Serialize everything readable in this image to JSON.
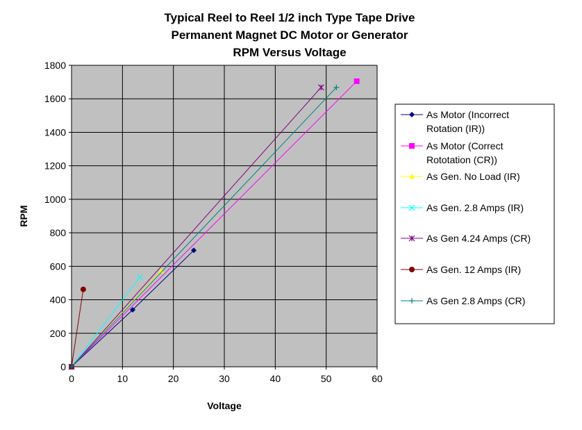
{
  "chart_data": {
    "type": "line",
    "title": [
      "Typical Reel to Reel 1/2 inch Type Tape Drive",
      "Permanent Magnet DC Motor or Generator",
      "RPM Versus Voltage"
    ],
    "xlabel": "Voltage",
    "ylabel": "RPM",
    "xlim": [
      0,
      60
    ],
    "ylim": [
      0,
      1800
    ],
    "xticks": [
      0,
      10,
      20,
      30,
      40,
      50,
      60
    ],
    "yticks": [
      0,
      200,
      400,
      600,
      800,
      1000,
      1200,
      1400,
      1600,
      1800
    ],
    "grid": true,
    "plot_background": "#c0c0c0",
    "legend_position": "right",
    "series": [
      {
        "name": "As Motor (Incorrect Rotation (IR))",
        "label_lines": [
          "As Motor (Incorrect",
          "Rotation (IR))"
        ],
        "color": "#000080",
        "marker": "diamond",
        "points": [
          [
            0,
            0
          ],
          [
            12,
            340
          ],
          [
            24,
            695
          ]
        ]
      },
      {
        "name": "As Motor (Correct Rototation (CR))",
        "label_lines": [
          "As Motor (Correct",
          "Rototation (CR))"
        ],
        "color": "#ff00ff",
        "marker": "square",
        "points": [
          [
            0,
            0
          ],
          [
            56,
            1705
          ]
        ]
      },
      {
        "name": "As Gen. No Load (IR)",
        "label_lines": [
          "As Gen. No Load (IR)"
        ],
        "color": "#ffff00",
        "marker": "triangle",
        "points": [
          [
            0,
            0
          ],
          [
            17.6,
            572
          ]
        ]
      },
      {
        "name": "As Gen. 2.8 Amps (IR)",
        "label_lines": [
          "As Gen. 2.8 Amps (IR)"
        ],
        "color": "#00ffff",
        "marker": "x",
        "points": [
          [
            0,
            0
          ],
          [
            13.4,
            535
          ]
        ]
      },
      {
        "name": "As Gen 4.24 Amps (CR)",
        "label_lines": [
          "As Gen 4.24 Amps (CR)"
        ],
        "color": "#800080",
        "marker": "star",
        "points": [
          [
            0,
            0
          ],
          [
            49,
            1668
          ]
        ]
      },
      {
        "name": "As Gen. 12 Amps (IR)",
        "label_lines": [
          "As Gen. 12 Amps (IR)"
        ],
        "color": "#800000",
        "marker": "circle",
        "points": [
          [
            0,
            0
          ],
          [
            2.3,
            462
          ]
        ]
      },
      {
        "name": "As Gen 2.8 Amps (CR)",
        "label_lines": [
          "As Gen 2.8 Amps (CR)"
        ],
        "color": "#008080",
        "marker": "plus",
        "points": [
          [
            0,
            0
          ],
          [
            52,
            1668
          ]
        ]
      }
    ]
  }
}
